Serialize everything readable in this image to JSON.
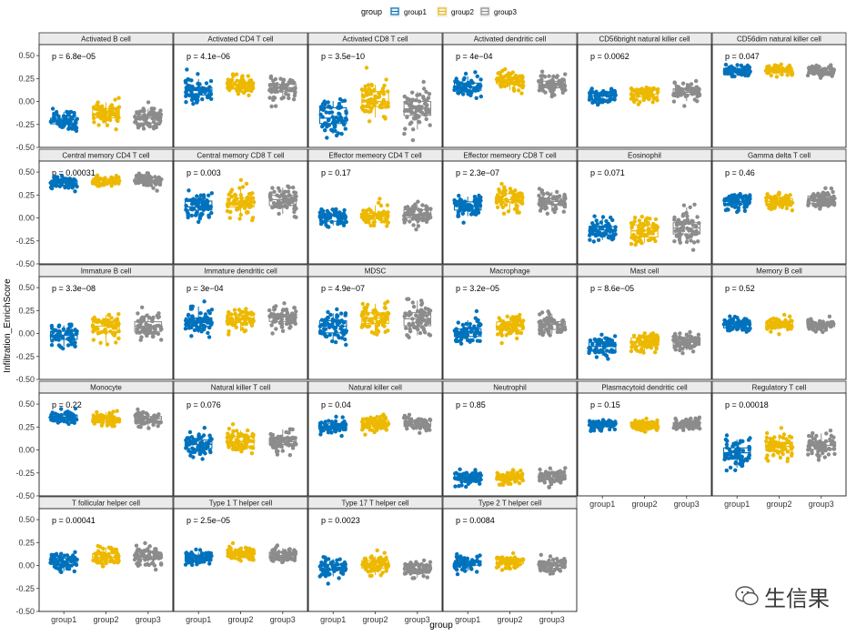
{
  "legend": {
    "title": "group",
    "items": [
      {
        "label": "group1",
        "color": "#0072BD"
      },
      {
        "label": "group2",
        "color": "#EDB900"
      },
      {
        "label": "group3",
        "color": "#8C8C8C"
      }
    ]
  },
  "axis": {
    "ylabel": "Infiltration_EnrichScore",
    "xlabel": "group",
    "yticks": [
      "0.50",
      "0.25",
      "0.00",
      "-0.25",
      "-0.50"
    ],
    "xticks": [
      "group1",
      "group2",
      "group3"
    ]
  },
  "watermark": "生信果",
  "chart_data": {
    "type": "box-jitter",
    "facet_ncol": 6,
    "ylim": [
      -0.5,
      0.62
    ],
    "groups": [
      "group1",
      "group2",
      "group3"
    ],
    "panels": [
      {
        "title": "Activated B cell",
        "p": "p = 6.8e−05",
        "medians": [
          -0.2,
          -0.14,
          -0.18
        ],
        "spread": [
          0.08,
          0.09,
          0.09
        ]
      },
      {
        "title": "Activated CD4 T cell",
        "p": "p = 4.1e−06",
        "medians": [
          0.12,
          0.19,
          0.15
        ],
        "spread": [
          0.08,
          0.07,
          0.08
        ]
      },
      {
        "title": "Activated CD8 T cell",
        "p": "p = 3.5e−10",
        "medians": [
          -0.18,
          0.0,
          -0.08
        ],
        "spread": [
          0.14,
          0.15,
          0.16
        ]
      },
      {
        "title": "Activated dendritic cell",
        "p": "p = 4e−04",
        "medians": [
          0.16,
          0.21,
          0.18
        ],
        "spread": [
          0.08,
          0.07,
          0.08
        ]
      },
      {
        "title": "CD56bright natural killer cell",
        "p": "p = 0.0062",
        "medians": [
          0.06,
          0.08,
          0.1
        ],
        "spread": [
          0.06,
          0.06,
          0.07
        ]
      },
      {
        "title": "CD56dim natural killer cell",
        "p": "p = 0.047",
        "medians": [
          0.34,
          0.34,
          0.33
        ],
        "spread": [
          0.04,
          0.04,
          0.04
        ]
      },
      {
        "title": "Central memory CD4 T cell",
        "p": "p = 0.00031",
        "medians": [
          0.38,
          0.41,
          0.41
        ],
        "spread": [
          0.04,
          0.04,
          0.04
        ]
      },
      {
        "title": "Central memory CD8 T cell",
        "p": "p = 0.003",
        "medians": [
          0.12,
          0.17,
          0.2
        ],
        "spread": [
          0.1,
          0.1,
          0.1
        ]
      },
      {
        "title": "Effector memeory CD4 T cell",
        "p": "p = 0.17",
        "medians": [
          0.02,
          0.03,
          0.04
        ],
        "spread": [
          0.06,
          0.07,
          0.07
        ]
      },
      {
        "title": "Effector memeory CD8 T cell",
        "p": "p = 2.3e−07",
        "medians": [
          0.13,
          0.2,
          0.18
        ],
        "spread": [
          0.08,
          0.08,
          0.08
        ]
      },
      {
        "title": "Eosinophil",
        "p": "p = 0.071",
        "medians": [
          -0.13,
          -0.14,
          -0.11
        ],
        "spread": [
          0.09,
          0.1,
          0.12
        ]
      },
      {
        "title": "Gamma delta T cell",
        "p": "p = 0.46",
        "medians": [
          0.18,
          0.18,
          0.19
        ],
        "spread": [
          0.06,
          0.06,
          0.07
        ]
      },
      {
        "title": "Immature  B cell",
        "p": "p = 3.3e−08",
        "medians": [
          -0.02,
          0.08,
          0.08
        ],
        "spread": [
          0.1,
          0.1,
          0.1
        ]
      },
      {
        "title": "Immature dendritic cell",
        "p": "p = 3e−04",
        "medians": [
          0.12,
          0.15,
          0.18
        ],
        "spread": [
          0.08,
          0.08,
          0.08
        ]
      },
      {
        "title": "MDSC",
        "p": "p = 4.9e−07",
        "medians": [
          0.08,
          0.17,
          0.16
        ],
        "spread": [
          0.12,
          0.12,
          0.12
        ]
      },
      {
        "title": "Macrophage",
        "p": "p = 3.2e−05",
        "medians": [
          0.02,
          0.08,
          0.1
        ],
        "spread": [
          0.09,
          0.08,
          0.08
        ]
      },
      {
        "title": "Mast cell",
        "p": "p = 8.6e−05",
        "medians": [
          -0.14,
          -0.09,
          -0.09
        ],
        "spread": [
          0.07,
          0.07,
          0.07
        ]
      },
      {
        "title": "Memory B cell",
        "p": "p = 0.52",
        "medians": [
          0.1,
          0.1,
          0.1
        ],
        "spread": [
          0.05,
          0.05,
          0.05
        ]
      },
      {
        "title": "Monocyte",
        "p": "p = 0.22",
        "medians": [
          0.35,
          0.34,
          0.34
        ],
        "spread": [
          0.05,
          0.05,
          0.05
        ]
      },
      {
        "title": "Natural killer T cell",
        "p": "p = 0.076",
        "medians": [
          0.06,
          0.09,
          0.09
        ],
        "spread": [
          0.08,
          0.08,
          0.08
        ]
      },
      {
        "title": "Natural killer cell",
        "p": "p = 0.04",
        "medians": [
          0.26,
          0.28,
          0.28
        ],
        "spread": [
          0.05,
          0.05,
          0.05
        ]
      },
      {
        "title": "Neutrophil",
        "p": "p = 0.85",
        "medians": [
          -0.3,
          -0.3,
          -0.3
        ],
        "spread": [
          0.05,
          0.05,
          0.06
        ]
      },
      {
        "title": "Plasmacytoid dendritic cell",
        "p": "p = 0.15",
        "medians": [
          0.27,
          0.27,
          0.28
        ],
        "spread": [
          0.04,
          0.04,
          0.04
        ]
      },
      {
        "title": "Regulatory T cell",
        "p": "p = 0.00018",
        "medians": [
          -0.03,
          0.04,
          0.05
        ],
        "spread": [
          0.11,
          0.1,
          0.1
        ]
      },
      {
        "title": "T follicular helper cell",
        "p": "p = 0.00041",
        "medians": [
          0.05,
          0.09,
          0.1
        ],
        "spread": [
          0.07,
          0.07,
          0.08
        ]
      },
      {
        "title": "Type 1 T helper cell",
        "p": "p = 2.5e−05",
        "medians": [
          0.08,
          0.13,
          0.11
        ],
        "spread": [
          0.05,
          0.05,
          0.06
        ]
      },
      {
        "title": "Type 17 T helper cell",
        "p": "p = 0.0023",
        "medians": [
          -0.04,
          0.0,
          -0.04
        ],
        "spread": [
          0.07,
          0.07,
          0.07
        ]
      },
      {
        "title": "Type 2 T helper cell",
        "p": "p = 0.0084",
        "medians": [
          0.03,
          0.04,
          0.01
        ],
        "spread": [
          0.05,
          0.05,
          0.05
        ]
      }
    ]
  }
}
